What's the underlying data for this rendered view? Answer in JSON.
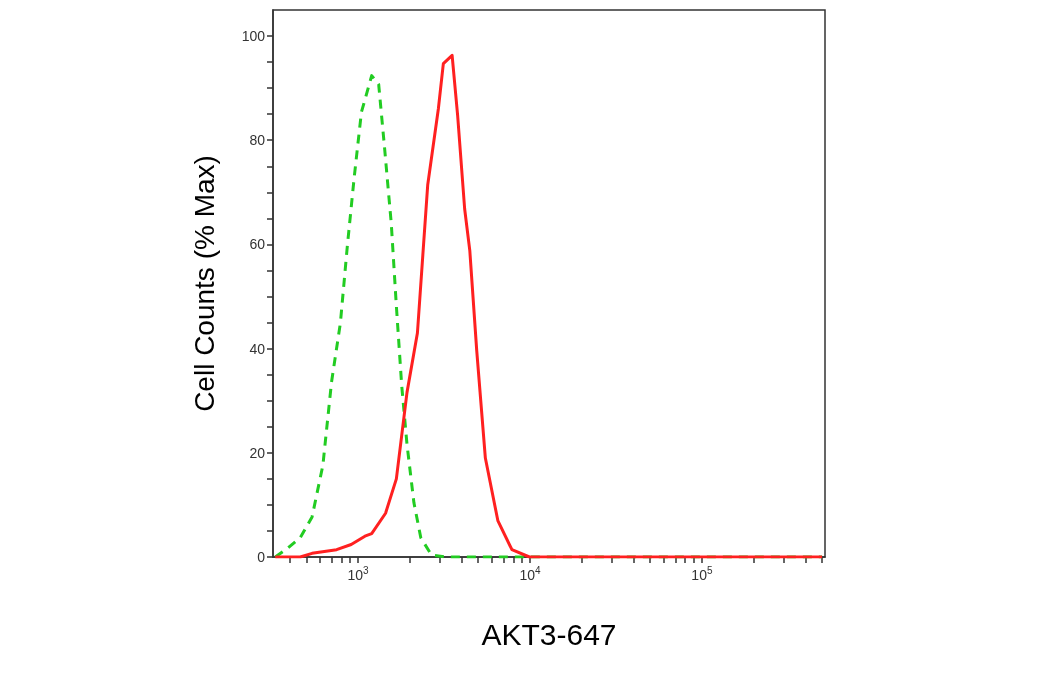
{
  "chart_data": {
    "type": "line",
    "xlabel": "AKT3-647",
    "ylabel": "Cell Counts (% Max)",
    "log": "x",
    "xlim": [
      320,
      520000
    ],
    "ylim": [
      0,
      105
    ],
    "xticks": [
      {
        "value": 400,
        "label": null
      },
      {
        "value": 500,
        "label": null
      },
      {
        "value": 600,
        "label": null
      },
      {
        "value": 700,
        "label": null
      },
      {
        "value": 800,
        "label": null
      },
      {
        "value": 900,
        "label": null
      },
      {
        "value": 1000,
        "label": "10$^{3}$"
      },
      {
        "value": 2000,
        "label": null
      },
      {
        "value": 3000,
        "label": null
      },
      {
        "value": 4000,
        "label": null
      },
      {
        "value": 5000,
        "label": null
      },
      {
        "value": 6000,
        "label": null
      },
      {
        "value": 7000,
        "label": null
      },
      {
        "value": 8000,
        "label": null
      },
      {
        "value": 9000,
        "label": null
      },
      {
        "value": 10000,
        "label": "10$^{4}$"
      },
      {
        "value": 20000,
        "label": null
      },
      {
        "value": 30000,
        "label": null
      },
      {
        "value": 40000,
        "label": null
      },
      {
        "value": 50000,
        "label": null
      },
      {
        "value": 60000,
        "label": null
      },
      {
        "value": 70000,
        "label": null
      },
      {
        "value": 80000,
        "label": null
      },
      {
        "value": 90000,
        "label": null
      },
      {
        "value": 100000,
        "label": "10$^{5}$"
      },
      {
        "value": 200000,
        "label": null
      },
      {
        "value": 300000,
        "label": null
      },
      {
        "value": 400000,
        "label": null
      },
      {
        "value": 500000,
        "label": null
      }
    ],
    "yticks": [
      0,
      {
        "value": 5,
        "label": null
      },
      {
        "value": 10,
        "label": null
      },
      {
        "value": 15,
        "label": null
      },
      20,
      {
        "value": 25,
        "label": null
      },
      {
        "value": 30,
        "label": null
      },
      {
        "value": 35,
        "label": null
      },
      40,
      {
        "value": 45,
        "label": null
      },
      {
        "value": 50,
        "label": null
      },
      {
        "value": 55,
        "label": null
      },
      60,
      {
        "value": 65,
        "label": null
      },
      {
        "value": 70,
        "label": null
      },
      {
        "value": 75,
        "label": null
      },
      80,
      {
        "value": 85,
        "label": null
      },
      {
        "value": 90,
        "label": null
      },
      {
        "value": 95,
        "label": null
      },
      100
    ],
    "grid": false,
    "marker": "none",
    "series": [
      {
        "color": "#22cc22",
        "line_style": "dashed",
        "x": [
          330,
          390,
          461,
          540,
          624,
          701,
          789,
          865,
          949,
          1046,
          1200,
          1318,
          1418,
          1560,
          1670,
          1794,
          1926,
          2113,
          2317,
          2670,
          3215,
          10000,
          100000,
          500000
        ],
        "values": [
          0,
          1.7,
          3.7,
          7.7,
          17.6,
          33.6,
          44.9,
          59.5,
          72.8,
          85.4,
          92.4,
          90.7,
          79.4,
          64,
          48.2,
          32.9,
          21.6,
          10.4,
          3.7,
          0.4,
          0,
          0,
          0,
          0
        ]
      },
      {
        "color": "#ff2020",
        "line_style": "solid",
        "x": [
          330,
          461,
          540,
          750,
          912,
          1096,
          1200,
          1445,
          1670,
          1926,
          2214,
          2541,
          2930,
          3133,
          3524,
          3793,
          4169,
          4466,
          4900,
          5500,
          6500,
          7850,
          9930,
          100000,
          500000
        ],
        "values": [
          0,
          0,
          0.7,
          1.4,
          2.4,
          4,
          4.5,
          8.4,
          15,
          31.6,
          43,
          71.4,
          86,
          94.7,
          96.3,
          84.8,
          66.8,
          58.8,
          39.6,
          19,
          7,
          1.4,
          0,
          0,
          0
        ]
      }
    ]
  }
}
